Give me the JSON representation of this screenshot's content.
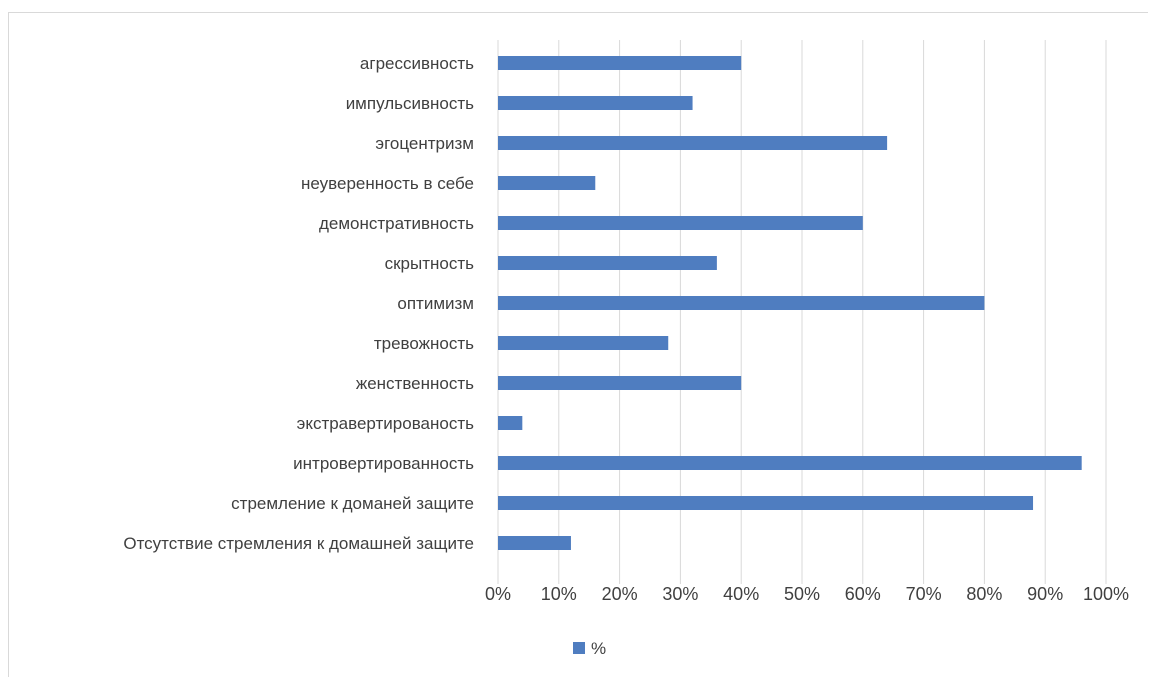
{
  "chart_data": {
    "type": "bar",
    "orientation": "horizontal",
    "categories": [
      "агрессивность",
      "импульсивность",
      "эгоцентризм",
      "неуверенность в себе",
      "демонстративность",
      "скрытность",
      "оптимизм",
      "тревожность",
      "женственность",
      "экстравертированость",
      "интровертированность",
      "стремление к доманей защите",
      "Отсутствие стремления к домашней защите"
    ],
    "series": [
      {
        "name": "%",
        "values": [
          40,
          32,
          64,
          16,
          60,
          36,
          80,
          28,
          40,
          4,
          96,
          88,
          12
        ]
      }
    ],
    "xlim": [
      0,
      100
    ],
    "x_ticks": [
      0,
      10,
      20,
      30,
      40,
      50,
      60,
      70,
      80,
      90,
      100
    ],
    "x_tick_labels": [
      "0%",
      "10%",
      "20%",
      "30%",
      "40%",
      "50%",
      "60%",
      "70%",
      "80%",
      "90%",
      "100%"
    ],
    "grid": "vertical",
    "legend_position": "bottom",
    "colors": {
      "bar": "#4f7dc0",
      "grid": "#d9d9d9",
      "text": "#404040"
    }
  }
}
